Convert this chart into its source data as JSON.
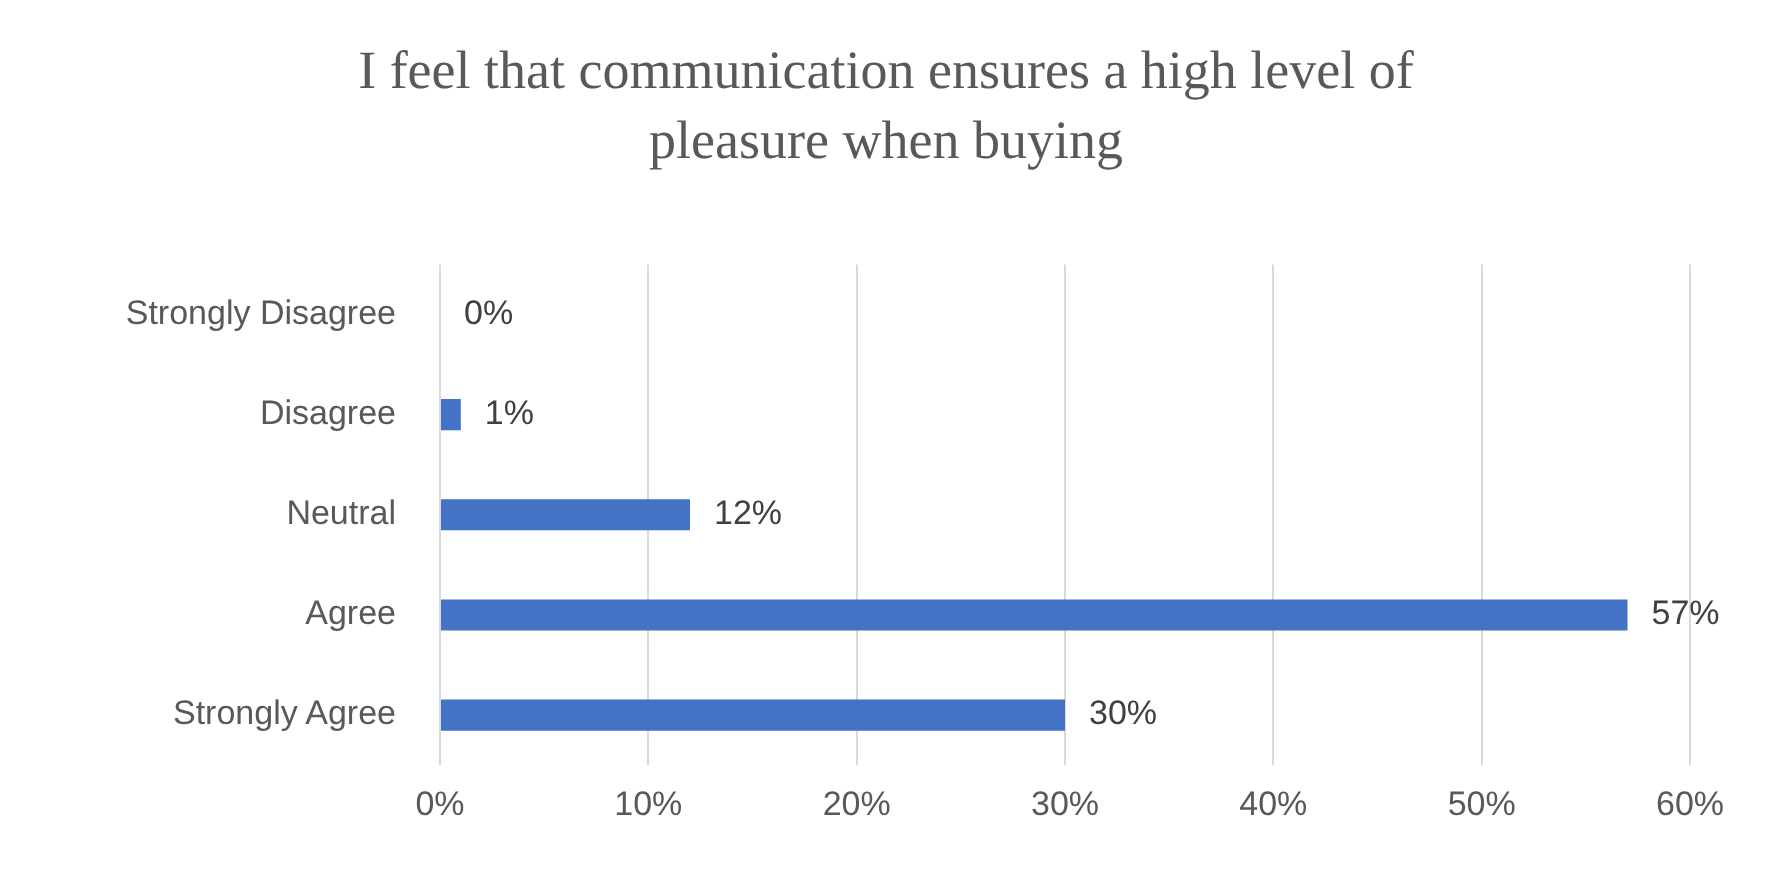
{
  "chart_data": {
    "type": "bar",
    "orientation": "horizontal",
    "title": "I feel that communication ensures a high level of pleasure when buying",
    "categories": [
      "Strongly Disagree",
      "Disagree",
      "Neutral",
      "Agree",
      "Strongly Agree"
    ],
    "values": [
      0,
      1,
      12,
      57,
      30
    ],
    "value_labels": [
      "0%",
      "1%",
      "12%",
      "57%",
      "30%"
    ],
    "color": "#4472c4",
    "xlim": [
      0,
      60
    ],
    "xticks": [
      {
        "value": 0,
        "label": "0%"
      },
      {
        "value": 10,
        "label": "10%"
      },
      {
        "value": 20,
        "label": "20%"
      },
      {
        "value": 30,
        "label": "30%"
      },
      {
        "value": 40,
        "label": "40%"
      },
      {
        "value": 50,
        "label": "50%"
      },
      {
        "value": 60,
        "label": "60%"
      }
    ],
    "grid": "x",
    "legend": false
  }
}
